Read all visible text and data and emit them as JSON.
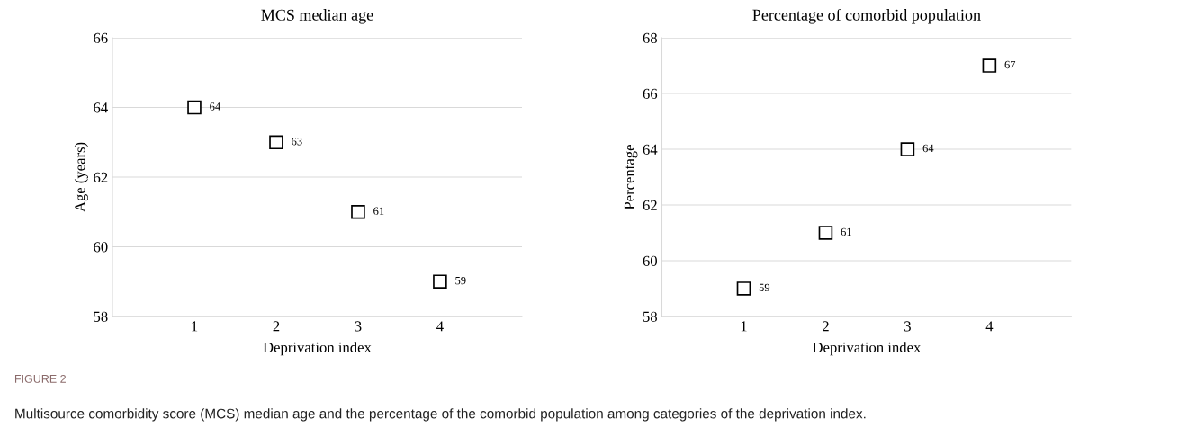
{
  "chart_data": [
    {
      "type": "scatter",
      "title": "MCS median age",
      "xlabel": "Deprivation index",
      "ylabel": "Age (years)",
      "x": [
        1,
        2,
        3,
        4
      ],
      "series": [
        {
          "color": "#000000",
          "values": [
            64,
            63,
            61,
            59
          ]
        }
      ],
      "xlim": [
        0,
        5
      ],
      "xticks": [
        1,
        2,
        3,
        4
      ],
      "ylim": [
        58,
        66
      ],
      "yticks": [
        58,
        60,
        62,
        64,
        66
      ],
      "grid": "y",
      "marker": "square",
      "data_labels": true,
      "annotations": [
        "FIGURE 2",
        "Multisource comorbidity score (MCS) median age and the percentage of the comorbid population among categories of the deprivation index."
      ]
    },
    {
      "type": "scatter",
      "title": "Percentage of comorbid population",
      "xlabel": "Deprivation index",
      "ylabel": "Percentage",
      "x": [
        1,
        2,
        3,
        4
      ],
      "series": [
        {
          "color": "#000000",
          "values": [
            59,
            61,
            64,
            67
          ]
        }
      ],
      "xlim": [
        0,
        5
      ],
      "xticks": [
        1,
        2,
        3,
        4
      ],
      "ylim": [
        58,
        68
      ],
      "yticks": [
        58,
        60,
        62,
        64,
        66,
        68
      ],
      "grid": "y",
      "marker": "square",
      "data_labels": true
    }
  ]
}
